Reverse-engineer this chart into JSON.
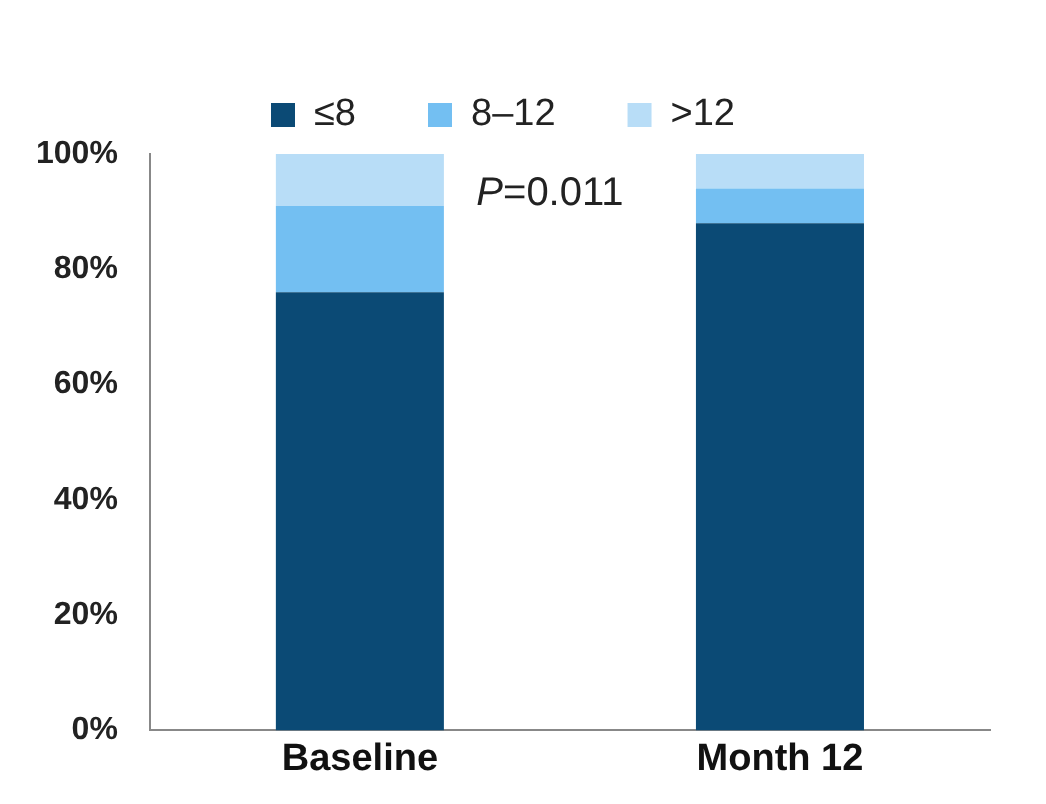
{
  "chart_data": {
    "type": "bar",
    "stacked": true,
    "categories": [
      "Baseline",
      "Month 12"
    ],
    "series": [
      {
        "name": "≤8",
        "color": "#0b4a75",
        "values": [
          76,
          88
        ]
      },
      {
        "name": "8–12",
        "color": "#73bff2",
        "values": [
          15,
          6
        ]
      },
      {
        "name": ">12",
        "color": "#b8ddf7",
        "values": [
          9,
          6
        ]
      }
    ],
    "ylim": [
      0,
      100
    ],
    "yticks": [
      {
        "value": 0,
        "label": "0%"
      },
      {
        "value": 20,
        "label": "20%"
      },
      {
        "value": 40,
        "label": "40%"
      },
      {
        "value": 60,
        "label": "60%"
      },
      {
        "value": 80,
        "label": "80%"
      },
      {
        "value": 100,
        "label": "100%"
      }
    ],
    "grid": false,
    "legend": "top",
    "annotations": [
      "P=0.011"
    ]
  }
}
